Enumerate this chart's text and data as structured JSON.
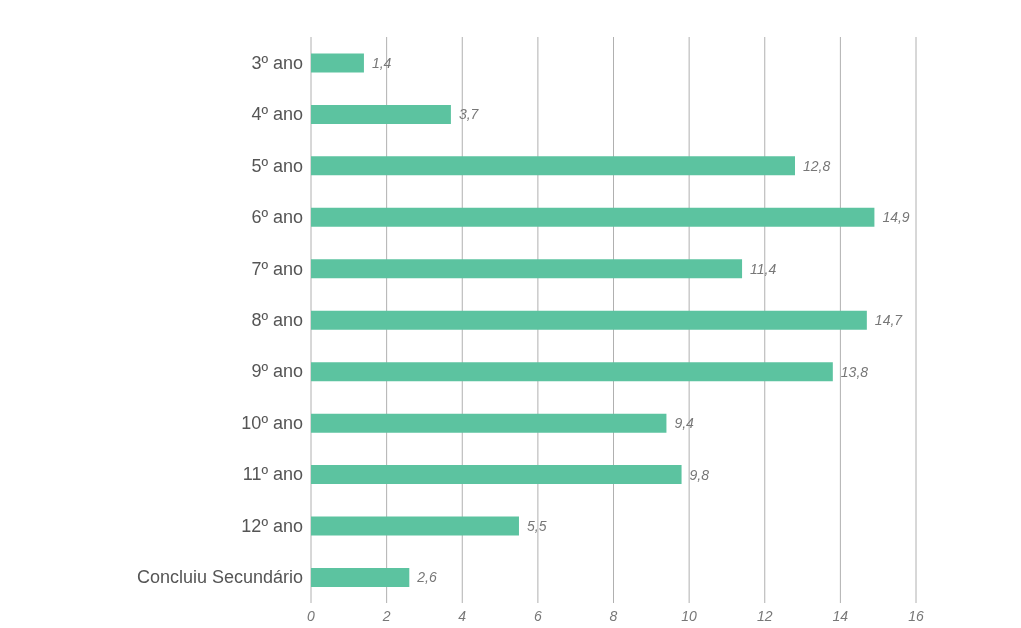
{
  "chart_data": {
    "type": "bar",
    "orientation": "horizontal",
    "categories": [
      "3º ano",
      "4º ano",
      "5º ano",
      "6º ano",
      "7º ano",
      "8º ano",
      "9º ano",
      "10º ano",
      "11º ano",
      "12º ano",
      "Concluiu Secundário"
    ],
    "values": [
      1.4,
      3.7,
      12.8,
      14.9,
      11.4,
      14.7,
      13.8,
      9.4,
      9.8,
      5.5,
      2.6
    ],
    "value_labels": [
      "1,4",
      "3,7",
      "12,8",
      "14,9",
      "11,4",
      "14,7",
      "13,8",
      "9,4",
      "9,8",
      "5,5",
      "2,6"
    ],
    "color": "#5cc3a0",
    "xlim": [
      0,
      16
    ],
    "xticks": [
      0,
      2,
      4,
      6,
      8,
      10,
      12,
      14,
      16
    ],
    "grid": "x"
  }
}
